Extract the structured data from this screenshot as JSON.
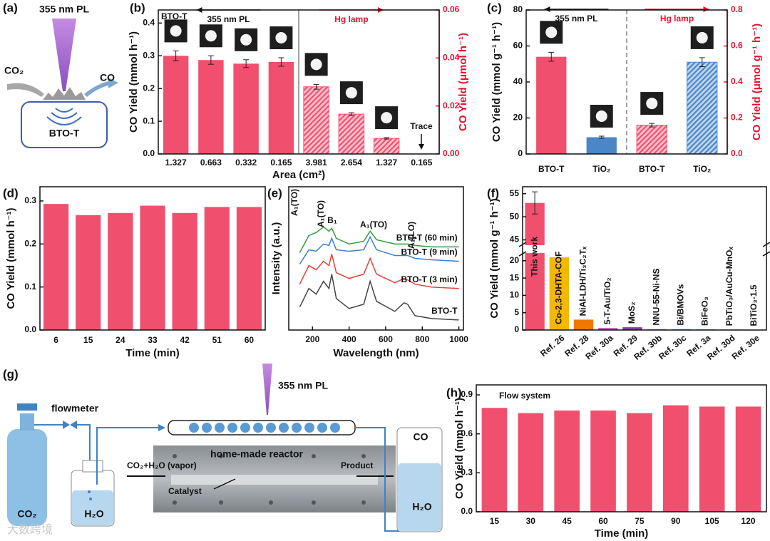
{
  "diagram_a": {
    "label": "(a)",
    "light": "355 nm PL",
    "reactant": "CO₂",
    "product": "CO",
    "sample": "BTO-T"
  },
  "diagram_g": {
    "label": "(g)",
    "flowmeter": "flowmeter",
    "light": "355 nm PL",
    "reactor": "home-made reactor",
    "inlet": "CO₂+H₂O (vapor)",
    "outlet": "Product",
    "catalyst": "Catalyst",
    "gas_out": "CO",
    "water_out": "H₂O",
    "cylinder": "CO₂",
    "bubbler": "H₂O"
  },
  "watermark": "大数跨境",
  "chart_data": [
    {
      "type": "bar",
      "panel_label": "(b)",
      "x_label": "Area (cm²)",
      "y_label": "CO Yield (mmol h⁻¹)",
      "y2_label": "CO Yield (μmol h⁻¹)",
      "categories": [
        "1.327",
        "0.663",
        "0.332",
        "0.165",
        "3.981",
        "2.654",
        "1.327",
        "0.165"
      ],
      "series": [
        {
          "name": "355 nm PL",
          "color": "#f0506e",
          "values": [
            0.3,
            0.287,
            0.276,
            0.281,
            null,
            null,
            null,
            null
          ],
          "errors": [
            0.015,
            0.013,
            0.012,
            0.013,
            null,
            null,
            null,
            null
          ]
        },
        {
          "name": "Hg lamp",
          "color": "#f0506e",
          "hatch": true,
          "axis": "y2",
          "values": [
            null,
            null,
            null,
            null,
            0.028,
            0.0166,
            0.0065,
            null
          ],
          "errors": [
            null,
            null,
            null,
            null,
            0.001,
            0.0006,
            0.0003,
            null
          ]
        }
      ],
      "ylim": [
        0,
        0.44
      ],
      "yticks": [
        {
          "value": 0,
          "label": "0.0"
        },
        0.1,
        0.2,
        0.3,
        0.4
      ],
      "y2lim": [
        0,
        0.06
      ],
      "y2ticks": [
        {
          "value": 0,
          "label": "0.00"
        },
        {
          "value": 0.02,
          "label": "0.02"
        },
        {
          "value": 0.04,
          "label": "0.04"
        },
        {
          "value": 0.06,
          "label": "0.06"
        }
      ],
      "divider": "solid",
      "annotations": [
        "BTO-T",
        "Trace"
      ]
    },
    {
      "type": "bar",
      "panel_label": "(c)",
      "y_label": "CO Yield (mmol g⁻¹ h⁻¹)",
      "y2_label": "CO Yield (μmol g⁻¹ h⁻¹)",
      "categories": [
        "BTO-T",
        "TiO₂",
        "BTO-T",
        "TiO₂"
      ],
      "series": [
        {
          "name": "355 nm PL",
          "colors": [
            "#f0506e",
            "#4a86c8",
            null,
            null
          ],
          "values": [
            54,
            9.3,
            null,
            null
          ],
          "errors": [
            2.5,
            0.6,
            null,
            null
          ]
        },
        {
          "name": "Hg lamp",
          "colors": [
            null,
            null,
            "#f0506e",
            "#4a86c8"
          ],
          "hatch": true,
          "axis": "y2",
          "values": [
            null,
            null,
            0.16,
            0.51
          ],
          "errors": [
            null,
            null,
            0.01,
            0.025
          ]
        }
      ],
      "ylim": [
        0,
        80
      ],
      "yticks": [
        0,
        20,
        40,
        60,
        80
      ],
      "y2lim": [
        0,
        0.8
      ],
      "y2ticks": [
        {
          "value": 0,
          "label": "0.0"
        },
        0.2,
        0.4,
        0.6,
        0.8
      ],
      "divider": "dashed"
    },
    {
      "type": "bar",
      "panel_label": "(d)",
      "x_label": "Time (min)",
      "y_label": "CO Yield (mmol h⁻¹)",
      "categories": [
        "6",
        "15",
        "24",
        "33",
        "42",
        "51",
        "60"
      ],
      "values": [
        0.293,
        0.267,
        0.272,
        0.289,
        0.272,
        0.286,
        0.286
      ],
      "color": "#f0506e",
      "ylim": [
        0,
        0.333
      ],
      "yticks": [
        {
          "value": 0,
          "label": "0.0"
        },
        0.1,
        0.2,
        0.3
      ]
    },
    {
      "type": "line",
      "panel_label": "(e)",
      "x_label": "Wavelength (nm)",
      "y_label": "Intensity (a.u.)",
      "x": [
        130,
        180,
        220,
        260,
        290,
        305,
        330,
        400,
        480,
        515,
        550,
        650,
        700,
        720,
        760,
        850,
        1000
      ],
      "series": [
        {
          "name": "BTO-T (60 min)",
          "color": "#2e9e3e",
          "values": [
            5.4,
            6.6,
            6.8,
            7.2,
            6.9,
            7.1,
            6.4,
            6.0,
            6.2,
            6.9,
            6.3,
            6.0,
            6.0,
            6.0,
            5.9,
            5.8,
            5.8
          ]
        },
        {
          "name": "BTO-T (9 min)",
          "color": "#3d7fc9",
          "values": [
            4.6,
            5.6,
            5.5,
            6.0,
            5.9,
            6.4,
            5.6,
            5.5,
            5.6,
            6.5,
            5.6,
            5.2,
            5.2,
            5.2,
            5.0,
            4.9,
            4.8
          ]
        },
        {
          "name": "BTO-T (3 min)",
          "color": "#e8403a",
          "values": [
            3.2,
            4.5,
            4.2,
            4.8,
            4.5,
            5.3,
            4.0,
            3.6,
            3.9,
            5.0,
            3.9,
            3.3,
            3.6,
            3.5,
            3.2,
            3.0,
            2.9
          ]
        },
        {
          "name": "BTO-T",
          "color": "#444444",
          "values": [
            1.6,
            2.9,
            2.5,
            3.4,
            2.9,
            3.9,
            2.2,
            1.5,
            1.8,
            3.4,
            2.0,
            1.3,
            1.9,
            1.8,
            1.0,
            0.8,
            0.7
          ]
        }
      ],
      "xlim": [
        70,
        1025
      ],
      "xticks": [
        200,
        400,
        600,
        800,
        1000
      ],
      "ylim": [
        0,
        10
      ],
      "annotations": [
        "A₁(TO)",
        "A₁(TO)",
        "B₁",
        "A₁(TO)",
        "A₁(LO)"
      ]
    },
    {
      "type": "bar",
      "panel_label": "(f)",
      "y_label": "CO Yield (mmol g⁻¹ h⁻¹)",
      "categories": [
        null,
        "Ref. 26",
        "Ref. 28",
        "Ref. 30a",
        "Ref. 29",
        "Ref. 30b",
        "Ref. 30c",
        "Ref. 3a",
        "Ref. 30d",
        "Ref. 30e"
      ],
      "values": [
        53,
        21,
        3.0,
        0.6,
        0.8,
        0.3,
        0.3,
        0.2,
        0.15,
        0.1
      ],
      "errors": [
        2.4,
        null,
        null,
        null,
        null,
        null,
        null,
        null,
        null,
        null
      ],
      "colors": [
        "#f0506e",
        "#f5b800",
        "#f07800",
        "#c060c0",
        "#8040a0",
        "#a0a0e0",
        "#80c0e0",
        "#60b0b0",
        "#a0c080",
        "#80c060"
      ],
      "bar_labels": [
        "This work",
        "Co-2,3-DHTA-COF",
        "NiAl-LDH/Ti₃C₂Tₓ",
        "5-T-Au/TiO₂",
        "MoS₂",
        "NNU-55-Ni-NS",
        "Bi/BMOVs",
        "BiFeO₃",
        "PbTiO₃/AuCu-MnOₓ",
        "BiTiO₃-1.5"
      ],
      "ylim": [
        0,
        56.5
      ],
      "ybreak": [
        22,
        44
      ],
      "yticks": [
        0,
        5,
        10,
        15,
        20,
        45,
        50,
        55
      ]
    },
    {
      "type": "bar",
      "panel_label": "(h)",
      "x_label": "Time (min)",
      "y_label": "CO Yield (mmol h⁻¹)",
      "categories": [
        "15",
        "30",
        "45",
        "60",
        "75",
        "90",
        "105",
        "120"
      ],
      "values": [
        0.8,
        0.76,
        0.78,
        0.78,
        0.76,
        0.82,
        0.81,
        0.81
      ],
      "color": "#f0506e",
      "ylim": [
        0,
        0.977
      ],
      "yticks": [
        {
          "value": 0,
          "label": "0.0"
        },
        0.3,
        0.6,
        0.9
      ],
      "annotations": [
        "Flow system"
      ]
    }
  ]
}
